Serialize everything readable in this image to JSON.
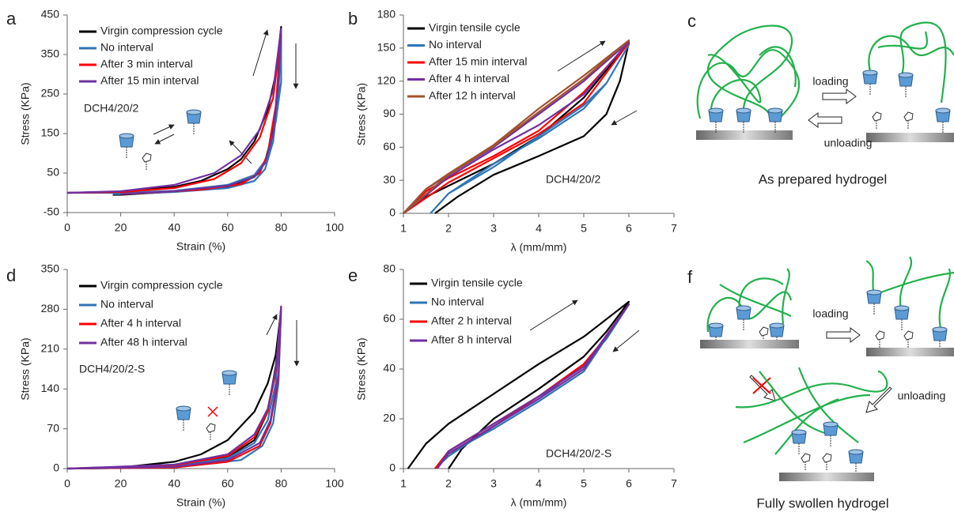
{
  "chart_data": [
    {
      "type": "line",
      "panel": "a",
      "xlabel": "Strain (%)",
      "ylabel": "Stress (KPa)",
      "annotation": "DCH4/20/2",
      "xlim": [
        0,
        100
      ],
      "xticks": [
        0,
        20,
        40,
        60,
        80,
        100
      ],
      "ylim": [
        -50,
        450
      ],
      "yticks": [
        -50,
        50,
        150,
        250,
        350,
        450
      ],
      "grid": false,
      "legend": "upper left",
      "series": [
        {
          "name": "Virgin compression cycle",
          "color": "#000000",
          "x": [
            0,
            20,
            40,
            50,
            60,
            65,
            70,
            75,
            78,
            80,
            79,
            78,
            76,
            74,
            70,
            60,
            40,
            20,
            17
          ],
          "values": [
            0,
            3,
            15,
            30,
            60,
            85,
            130,
            210,
            300,
            420,
            300,
            200,
            130,
            80,
            40,
            15,
            3,
            -5,
            -5
          ]
        },
        {
          "name": "No interval",
          "color": "#2e75b6",
          "x": [
            0,
            20,
            40,
            60,
            70,
            75,
            78,
            80,
            80,
            79,
            77,
            74,
            70,
            60,
            40,
            20,
            17
          ],
          "values": [
            0,
            0,
            5,
            20,
            45,
            90,
            180,
            280,
            410,
            250,
            130,
            60,
            30,
            12,
            2,
            -3,
            -3
          ]
        },
        {
          "name": "After 3 min interval",
          "color": "#ff0000",
          "x": [
            0,
            20,
            40,
            55,
            65,
            72,
            77,
            80,
            78,
            75,
            72,
            65,
            50,
            30,
            20
          ],
          "values": [
            0,
            2,
            12,
            35,
            75,
            140,
            240,
            400,
            220,
            100,
            50,
            22,
            8,
            0,
            -3
          ]
        },
        {
          "name": "After 15 min interval",
          "color": "#7030a0",
          "x": [
            0,
            20,
            40,
            55,
            65,
            72,
            77,
            80,
            79,
            77,
            74,
            70,
            60,
            40,
            20
          ],
          "values": [
            0,
            4,
            20,
            50,
            95,
            160,
            260,
            415,
            280,
            150,
            75,
            40,
            18,
            4,
            -3
          ]
        }
      ]
    },
    {
      "type": "line",
      "panel": "b",
      "xlabel": "λ (mm/mm)",
      "ylabel": "Stress (KPa)",
      "annotation": "DCH4/20/2",
      "xlim": [
        1,
        7
      ],
      "xticks": [
        1,
        2,
        3,
        4,
        5,
        6,
        7
      ],
      "ylim": [
        0,
        180
      ],
      "yticks": [
        0,
        30,
        60,
        90,
        120,
        150,
        180
      ],
      "grid": false,
      "legend": "upper left",
      "series": [
        {
          "name": "Virgin tensile cycle",
          "color": "#000000",
          "x": [
            1,
            1.5,
            2,
            3,
            4,
            5,
            5.5,
            6,
            5.8,
            5.5,
            5,
            4,
            3,
            2.2,
            1.7
          ],
          "values": [
            0,
            15,
            25,
            45,
            70,
            105,
            130,
            155,
            120,
            90,
            70,
            52,
            35,
            15,
            0
          ]
        },
        {
          "name": "No interval",
          "color": "#2e75b6",
          "x": [
            1.6,
            2,
            2.5,
            3,
            4,
            5,
            5.5,
            6,
            5.5,
            5,
            4,
            3,
            2,
            1.6
          ],
          "values": [
            0,
            18,
            30,
            42,
            70,
            98,
            118,
            153,
            118,
            95,
            68,
            45,
            18,
            0
          ]
        },
        {
          "name": "After 15 min interval",
          "color": "#ff0000",
          "x": [
            1,
            1.5,
            2,
            3,
            4,
            5,
            6,
            5,
            4,
            3,
            2,
            1
          ],
          "values": [
            0,
            20,
            32,
            52,
            75,
            110,
            155,
            100,
            72,
            50,
            28,
            0
          ]
        },
        {
          "name": "After 4 h interval",
          "color": "#7030a0",
          "x": [
            1,
            1.5,
            2,
            3,
            4,
            5,
            6,
            5,
            4,
            3,
            2,
            1
          ],
          "values": [
            0,
            22,
            35,
            60,
            90,
            120,
            156,
            108,
            80,
            58,
            33,
            0
          ]
        },
        {
          "name": "After 12 h interval",
          "color": "#a0522d",
          "x": [
            1,
            1.5,
            2,
            3,
            4,
            5,
            6,
            5,
            4,
            3,
            2,
            1
          ],
          "values": [
            0,
            22,
            36,
            62,
            95,
            125,
            157,
            122,
            92,
            61,
            35,
            0
          ]
        }
      ]
    },
    {
      "type": "line",
      "panel": "d",
      "xlabel": "Strain (%)",
      "ylabel": "Stress (KPa)",
      "annotation": "DCH4/20/2-S",
      "xlim": [
        0,
        100
      ],
      "xticks": [
        0,
        20,
        40,
        60,
        80,
        100
      ],
      "ylim": [
        0,
        350
      ],
      "yticks": [
        0,
        70,
        140,
        210,
        280,
        350
      ],
      "grid": false,
      "legend": "upper left",
      "series": [
        {
          "name": "Virgin compression cycle",
          "color": "#000000",
          "x": [
            0,
            20,
            40,
            50,
            60,
            70,
            75,
            78,
            80,
            78,
            75,
            70,
            60,
            40,
            20,
            0
          ],
          "values": [
            0,
            2,
            12,
            25,
            50,
            100,
            150,
            200,
            280,
            180,
            100,
            50,
            20,
            5,
            1,
            0
          ]
        },
        {
          "name": "No interval",
          "color": "#2e75b6",
          "x": [
            0,
            20,
            40,
            60,
            70,
            75,
            78,
            80,
            79,
            77,
            73,
            65,
            40,
            0
          ],
          "values": [
            0,
            1,
            5,
            18,
            45,
            85,
            150,
            280,
            150,
            80,
            40,
            15,
            2,
            0
          ]
        },
        {
          "name": "After 4 h interval",
          "color": "#ff0000",
          "x": [
            0,
            40,
            60,
            70,
            75,
            78,
            80,
            79,
            76,
            72,
            60,
            40,
            0
          ],
          "values": [
            0,
            6,
            22,
            55,
            100,
            170,
            285,
            160,
            80,
            40,
            12,
            2,
            0
          ]
        },
        {
          "name": "After 48 h interval",
          "color": "#7030a0",
          "x": [
            0,
            40,
            60,
            70,
            75,
            78,
            80,
            79,
            76,
            72,
            60,
            40,
            0
          ],
          "values": [
            0,
            7,
            25,
            60,
            105,
            175,
            285,
            165,
            85,
            45,
            15,
            3,
            0
          ]
        }
      ]
    },
    {
      "type": "line",
      "panel": "e",
      "xlabel": "λ (mm/mm)",
      "ylabel": "Stress (KPa)",
      "annotation": "DCH4/20/2-S",
      "xlim": [
        1,
        7
      ],
      "xticks": [
        1,
        2,
        3,
        4,
        5,
        6,
        7
      ],
      "ylim": [
        0,
        80
      ],
      "yticks": [
        0,
        20,
        40,
        60,
        80
      ],
      "grid": false,
      "legend": "upper left",
      "series": [
        {
          "name": "Virgin tensile cycle",
          "color": "#000000",
          "x": [
            1.1,
            1.5,
            2,
            3,
            4,
            5,
            6,
            5.5,
            5,
            4,
            3,
            2.3,
            2
          ],
          "values": [
            0,
            10,
            18,
            30,
            42,
            53,
            67,
            55,
            45,
            32,
            20,
            8,
            0
          ]
        },
        {
          "name": "No interval",
          "color": "#2e75b6",
          "x": [
            1.7,
            2,
            3,
            4,
            5,
            6,
            5.5,
            5,
            4,
            3,
            2,
            1.7
          ],
          "values": [
            0,
            6,
            16,
            27,
            39,
            66,
            52,
            42,
            28,
            17,
            5,
            0
          ]
        },
        {
          "name": "After 2 h interval",
          "color": "#ff0000",
          "x": [
            1.7,
            2,
            3,
            4,
            5,
            6,
            5.5,
            5,
            4,
            3,
            2,
            1.7
          ],
          "values": [
            0,
            7,
            18,
            29,
            41,
            66,
            53,
            42,
            29,
            17,
            6,
            0
          ]
        },
        {
          "name": "After 8 h interval",
          "color": "#7030a0",
          "x": [
            1.75,
            2,
            3,
            4,
            5,
            6,
            5,
            4,
            3,
            2,
            1.75
          ],
          "values": [
            0,
            7,
            18,
            29,
            41,
            66,
            40,
            28,
            17,
            6,
            0
          ]
        }
      ]
    }
  ],
  "diagrams": [
    {
      "panel": "c",
      "texts": [
        "loading",
        "unloading",
        "As prepared hydrogel"
      ]
    },
    {
      "panel": "f",
      "texts": [
        "loading",
        "unloading",
        "Fully swollen hydrogel"
      ]
    }
  ]
}
